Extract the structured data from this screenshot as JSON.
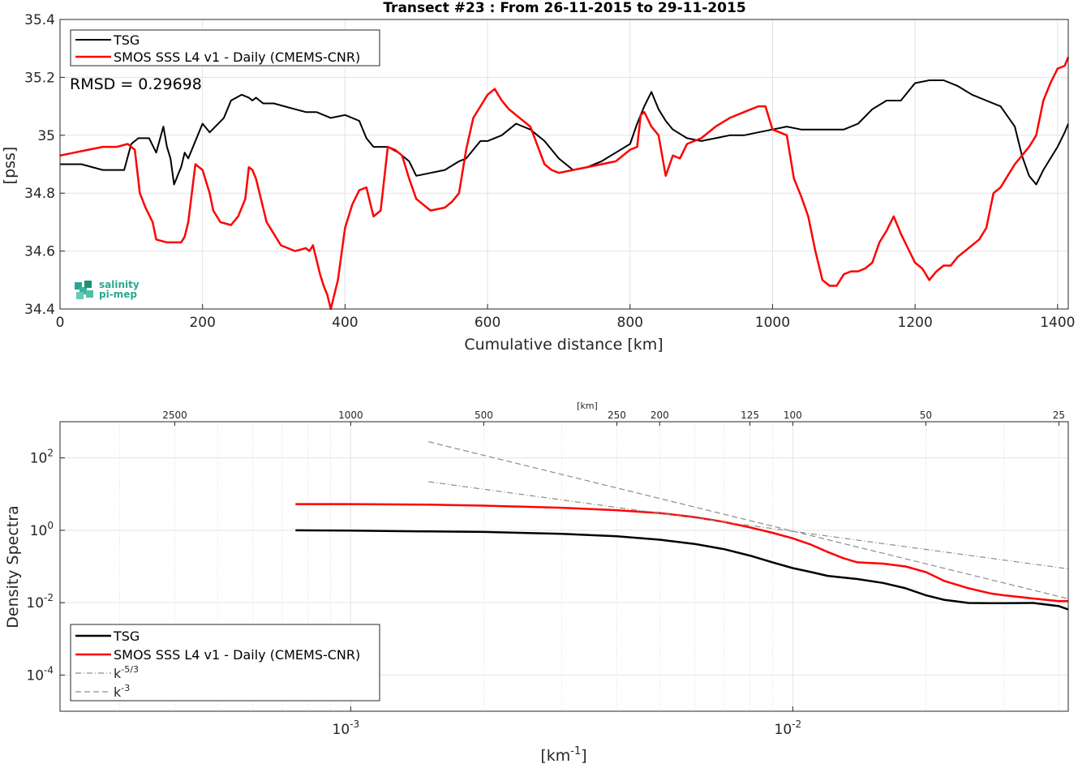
{
  "figure": {
    "title": "Transect #23 : From 26-11-2015 to 29-11-2015",
    "logo_text": [
      "salinity",
      "pi-mep"
    ]
  },
  "chart_data": [
    {
      "type": "line",
      "title": "Transect #23 : From 26-11-2015 to 29-11-2015",
      "xlabel": "Cumulative distance [km]",
      "ylabel": "[pss]",
      "xlim": [
        0,
        1415
      ],
      "ylim": [
        34.4,
        35.4
      ],
      "xticks": [
        0,
        200,
        400,
        600,
        800,
        1000,
        1200,
        1400
      ],
      "yticks": [
        34.4,
        34.6,
        34.8,
        35,
        35.2,
        35.4
      ],
      "ytick_labels": [
        "34.4",
        "34.6",
        "34.8",
        "35",
        "35.2",
        "35.4"
      ],
      "grid": true,
      "legend_position": "top-left",
      "annotation": "RMSD = 0.29698",
      "series": [
        {
          "name": "TSG",
          "color": "#000000",
          "x": [
            0,
            30,
            60,
            90,
            100,
            110,
            125,
            135,
            145,
            150,
            155,
            160,
            165,
            170,
            175,
            180,
            190,
            200,
            210,
            230,
            240,
            255,
            265,
            270,
            275,
            285,
            300,
            315,
            330,
            345,
            360,
            380,
            400,
            420,
            430,
            440,
            460,
            475,
            490,
            500,
            520,
            540,
            560,
            570,
            580,
            590,
            600,
            620,
            640,
            660,
            680,
            700,
            720,
            740,
            760,
            780,
            800,
            810,
            820,
            830,
            840,
            850,
            860,
            880,
            900,
            920,
            940,
            960,
            980,
            1000,
            1020,
            1040,
            1060,
            1080,
            1100,
            1120,
            1140,
            1160,
            1180,
            1200,
            1220,
            1240,
            1260,
            1280,
            1300,
            1320,
            1340,
            1350,
            1360,
            1370,
            1380,
            1390,
            1400,
            1410,
            1415
          ],
          "y": [
            34.9,
            34.9,
            34.88,
            34.88,
            34.97,
            34.99,
            34.99,
            34.94,
            35.03,
            34.96,
            34.92,
            34.83,
            34.86,
            34.89,
            34.94,
            34.92,
            34.98,
            35.04,
            35.01,
            35.06,
            35.12,
            35.14,
            35.13,
            35.12,
            35.13,
            35.11,
            35.11,
            35.1,
            35.09,
            35.08,
            35.08,
            35.06,
            35.07,
            35.05,
            34.99,
            34.96,
            34.96,
            34.94,
            34.91,
            34.86,
            34.87,
            34.88,
            34.91,
            34.92,
            34.95,
            34.98,
            34.98,
            35,
            35.04,
            35.02,
            34.98,
            34.92,
            34.88,
            34.89,
            34.91,
            34.94,
            34.97,
            35.04,
            35.1,
            35.15,
            35.09,
            35.05,
            35.02,
            34.99,
            34.98,
            34.99,
            35,
            35,
            35.01,
            35.02,
            35.03,
            35.02,
            35.02,
            35.02,
            35.02,
            35.04,
            35.09,
            35.12,
            35.12,
            35.18,
            35.19,
            35.19,
            35.17,
            35.14,
            35.12,
            35.1,
            35.03,
            34.93,
            34.86,
            34.83,
            34.88,
            34.92,
            34.96,
            35.01,
            35.04
          ]
        },
        {
          "name": "SMOS SSS L4 v1 - Daily (CMEMS-CNR)",
          "color": "#ff0000",
          "x": [
            0,
            20,
            40,
            60,
            80,
            95,
            100,
            105,
            112,
            120,
            130,
            135,
            150,
            170,
            175,
            180,
            185,
            190,
            200,
            210,
            215,
            225,
            240,
            250,
            260,
            265,
            270,
            275,
            290,
            300,
            310,
            330,
            345,
            350,
            355,
            365,
            370,
            375,
            380,
            390,
            400,
            410,
            420,
            430,
            440,
            450,
            460,
            470,
            480,
            490,
            500,
            520,
            540,
            550,
            560,
            570,
            580,
            590,
            600,
            610,
            620,
            630,
            640,
            660,
            680,
            690,
            700,
            720,
            740,
            760,
            780,
            800,
            810,
            815,
            820,
            830,
            840,
            850,
            860,
            870,
            880,
            900,
            920,
            940,
            960,
            980,
            990,
            1000,
            1010,
            1020,
            1030,
            1040,
            1050,
            1060,
            1070,
            1080,
            1090,
            1100,
            1110,
            1120,
            1130,
            1140,
            1150,
            1160,
            1170,
            1180,
            1190,
            1200,
            1210,
            1220,
            1230,
            1240,
            1250,
            1260,
            1270,
            1280,
            1290,
            1300,
            1310,
            1320,
            1330,
            1340,
            1350,
            1360,
            1370,
            1380,
            1390,
            1400,
            1410,
            1415
          ],
          "y": [
            34.93,
            34.94,
            34.95,
            34.96,
            34.96,
            34.97,
            34.96,
            34.95,
            34.8,
            34.75,
            34.7,
            34.64,
            34.63,
            34.63,
            34.65,
            34.7,
            34.8,
            34.9,
            34.88,
            34.8,
            34.74,
            34.7,
            34.69,
            34.72,
            34.78,
            34.89,
            34.88,
            34.85,
            34.7,
            34.66,
            34.62,
            34.6,
            34.61,
            34.6,
            34.62,
            34.52,
            34.48,
            34.45,
            34.4,
            34.5,
            34.68,
            34.76,
            34.81,
            34.82,
            34.72,
            34.74,
            34.96,
            34.95,
            34.93,
            34.85,
            34.78,
            34.74,
            34.75,
            34.77,
            34.8,
            34.95,
            35.06,
            35.1,
            35.14,
            35.16,
            35.12,
            35.09,
            35.07,
            35.03,
            34.9,
            34.88,
            34.87,
            34.88,
            34.89,
            34.9,
            34.91,
            34.95,
            34.96,
            35.07,
            35.08,
            35.03,
            35,
            34.86,
            34.93,
            34.92,
            34.97,
            34.99,
            35.03,
            35.06,
            35.08,
            35.1,
            35.1,
            35.02,
            35.01,
            35.0,
            34.85,
            34.79,
            34.72,
            34.6,
            34.5,
            34.48,
            34.48,
            34.52,
            34.53,
            34.53,
            34.54,
            34.56,
            34.63,
            34.67,
            34.72,
            34.66,
            34.61,
            34.56,
            34.54,
            34.5,
            34.53,
            34.55,
            34.55,
            34.58,
            34.6,
            34.62,
            34.64,
            34.68,
            34.8,
            34.82,
            34.86,
            34.9,
            34.93,
            34.96,
            35.0,
            35.12,
            35.18,
            35.23,
            35.24,
            35.27
          ]
        }
      ]
    },
    {
      "type": "line",
      "xlabel": "[km",
      "xlabel_sup": "-1",
      "xlabel_end": "]",
      "ylabel": "Density Spectra",
      "x_scale": "log",
      "y_scale": "log",
      "xlim": [
        0.00022,
        0.042
      ],
      "ylim": [
        1e-05,
        1000
      ],
      "xticks": [
        0.001,
        0.01
      ],
      "xtick_labels": [
        {
          "base": "10",
          "exp": "-3"
        },
        {
          "base": "10",
          "exp": "-2"
        }
      ],
      "yticks": [
        0.0001,
        0.01,
        1,
        100
      ],
      "ytick_labels": [
        {
          "base": "10",
          "exp": "-4"
        },
        {
          "base": "10",
          "exp": "-2"
        },
        {
          "base": "10",
          "exp": "0"
        },
        {
          "base": "10",
          "exp": "2"
        }
      ],
      "top_axis_label": "[km]",
      "top_ticks_km": [
        2500,
        1000,
        500,
        250,
        200,
        125,
        100,
        50,
        25
      ],
      "grid": true,
      "legend_position": "bottom-left",
      "series": [
        {
          "name": "TSG",
          "color": "#000000",
          "x": [
            0.00075,
            0.001,
            0.0015,
            0.002,
            0.003,
            0.004,
            0.005,
            0.006,
            0.007,
            0.008,
            0.009,
            0.01,
            0.011,
            0.012,
            0.014,
            0.016,
            0.018,
            0.02,
            0.022,
            0.025,
            0.028,
            0.03,
            0.035,
            0.04,
            0.042
          ],
          "y": [
            1.0,
            0.98,
            0.93,
            0.9,
            0.8,
            0.68,
            0.55,
            0.42,
            0.3,
            0.2,
            0.13,
            0.09,
            0.07,
            0.055,
            0.045,
            0.035,
            0.025,
            0.016,
            0.012,
            0.0098,
            0.0097,
            0.0097,
            0.0098,
            0.008,
            0.0065
          ]
        },
        {
          "name": "SMOS SSS L4 v1 - Daily (CMEMS-CNR)",
          "color": "#ff0000",
          "x": [
            0.00075,
            0.001,
            0.0015,
            0.002,
            0.003,
            0.004,
            0.005,
            0.006,
            0.007,
            0.008,
            0.009,
            0.01,
            0.011,
            0.012,
            0.013,
            0.014,
            0.016,
            0.018,
            0.02,
            0.022,
            0.025,
            0.028,
            0.03,
            0.035,
            0.04,
            0.042
          ],
          "y": [
            5.3,
            5.3,
            5.1,
            4.8,
            4.2,
            3.6,
            3.0,
            2.3,
            1.7,
            1.2,
            0.85,
            0.6,
            0.4,
            0.25,
            0.17,
            0.13,
            0.12,
            0.1,
            0.07,
            0.04,
            0.025,
            0.018,
            0.016,
            0.013,
            0.011,
            0.011
          ]
        },
        {
          "name": "k-5/3",
          "name_base": "k",
          "name_sup": "-5/3",
          "color": "#8c8c8c",
          "dash": "dashdot",
          "x": [
            0.0015,
            0.042
          ],
          "y": [
            22.0,
            0.086
          ]
        },
        {
          "name": "k-3",
          "name_base": "k",
          "name_sup": "-3",
          "color": "#8c8c8c",
          "dash": "dashed",
          "x": [
            0.0015,
            0.042
          ],
          "y": [
            280.0,
            0.0128
          ]
        }
      ]
    }
  ]
}
